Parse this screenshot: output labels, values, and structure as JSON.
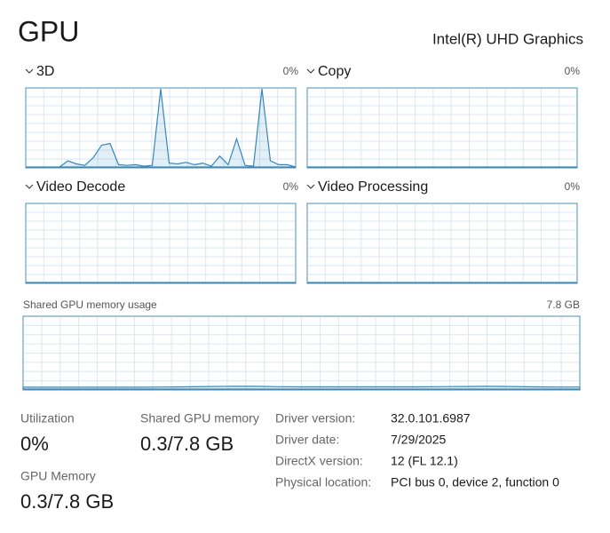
{
  "header": {
    "title": "GPU",
    "adapter": "Intel(R) UHD Graphics"
  },
  "engines": [
    {
      "name": "3D",
      "percent": "0%",
      "ylim": [
        0,
        100
      ],
      "values": [
        0,
        0,
        0,
        0,
        0,
        8,
        4,
        2,
        12,
        28,
        30,
        3,
        2,
        3,
        1,
        2,
        100,
        5,
        4,
        6,
        3,
        5,
        1,
        14,
        3,
        36,
        2,
        1,
        100,
        8,
        3,
        3,
        0
      ]
    },
    {
      "name": "Copy",
      "percent": "0%",
      "ylim": [
        0,
        100
      ],
      "values": [
        0,
        0,
        0,
        0,
        0,
        0,
        0,
        0,
        0,
        0,
        0
      ]
    },
    {
      "name": "Video Decode",
      "percent": "0%",
      "ylim": [
        0,
        100
      ],
      "values": [
        0,
        0,
        0,
        0,
        0,
        0,
        0,
        0,
        0,
        0,
        0
      ]
    },
    {
      "name": "Video Processing",
      "percent": "0%",
      "ylim": [
        0,
        100
      ],
      "values": [
        0,
        0,
        0,
        0,
        0,
        0,
        0,
        0,
        0,
        0,
        0
      ]
    }
  ],
  "shared_memory_graph": {
    "label": "Shared GPU memory usage",
    "max": "7.8 GB",
    "ylim": [
      0,
      7.8
    ],
    "values": [
      0.2,
      0.2,
      0.2,
      0.2,
      0.2,
      0.2,
      0.22,
      0.24,
      0.28,
      0.3,
      0.3,
      0.26,
      0.24,
      0.24,
      0.24,
      0.24,
      0.24,
      0.24,
      0.26,
      0.28,
      0.3,
      0.28,
      0.24,
      0.22,
      0.22
    ]
  },
  "stats": {
    "utilization": {
      "label": "Utilization",
      "value": "0%"
    },
    "shared_memory": {
      "label": "Shared GPU memory",
      "value": "0.3/7.8 GB"
    },
    "gpu_memory": {
      "label": "GPU Memory",
      "value": "0.3/7.8 GB"
    }
  },
  "details": [
    {
      "label": "Driver version:",
      "value": "32.0.101.6987"
    },
    {
      "label": "Driver date:",
      "value": "7/29/2025"
    },
    {
      "label": "DirectX version:",
      "value": "12 (FL 12.1)"
    },
    {
      "label": "Physical location:",
      "value": "PCI bus 0, device 2, function 0"
    }
  ]
}
